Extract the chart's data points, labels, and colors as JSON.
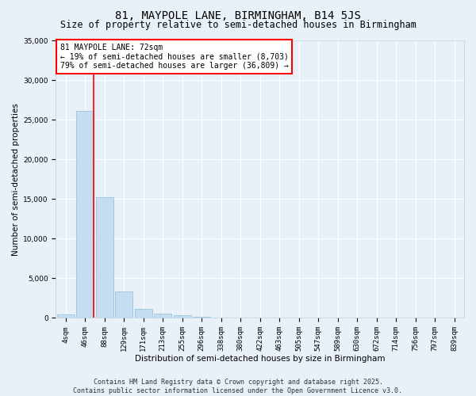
{
  "title": "81, MAYPOLE LANE, BIRMINGHAM, B14 5JS",
  "subtitle": "Size of property relative to semi-detached houses in Birmingham",
  "xlabel": "Distribution of semi-detached houses by size in Birmingham",
  "ylabel": "Number of semi-detached properties",
  "categories": [
    "4sqm",
    "46sqm",
    "88sqm",
    "129sqm",
    "171sqm",
    "213sqm",
    "255sqm",
    "296sqm",
    "338sqm",
    "380sqm",
    "422sqm",
    "463sqm",
    "505sqm",
    "547sqm",
    "589sqm",
    "630sqm",
    "672sqm",
    "714sqm",
    "756sqm",
    "797sqm",
    "839sqm"
  ],
  "values": [
    400,
    26100,
    15200,
    3300,
    1100,
    550,
    350,
    100,
    0,
    0,
    0,
    0,
    0,
    0,
    0,
    0,
    0,
    0,
    0,
    0,
    0
  ],
  "bar_color": "#c5ddf0",
  "bar_edge_color": "#8fbfda",
  "vline_color": "red",
  "vline_x_bar": 1,
  "annotation_text": "81 MAYPOLE LANE: 72sqm\n← 19% of semi-detached houses are smaller (8,703)\n79% of semi-detached houses are larger (36,809) →",
  "annotation_box_color": "white",
  "annotation_box_edge_color": "red",
  "ylim": [
    0,
    35000
  ],
  "yticks": [
    0,
    5000,
    10000,
    15000,
    20000,
    25000,
    30000,
    35000
  ],
  "background_color": "#e8f0f8",
  "grid_color": "white",
  "footer": "Contains HM Land Registry data © Crown copyright and database right 2025.\nContains public sector information licensed under the Open Government Licence v3.0.",
  "title_fontsize": 10,
  "subtitle_fontsize": 8.5,
  "axis_label_fontsize": 7.5,
  "tick_fontsize": 6.5,
  "annotation_fontsize": 7,
  "footer_fontsize": 6
}
